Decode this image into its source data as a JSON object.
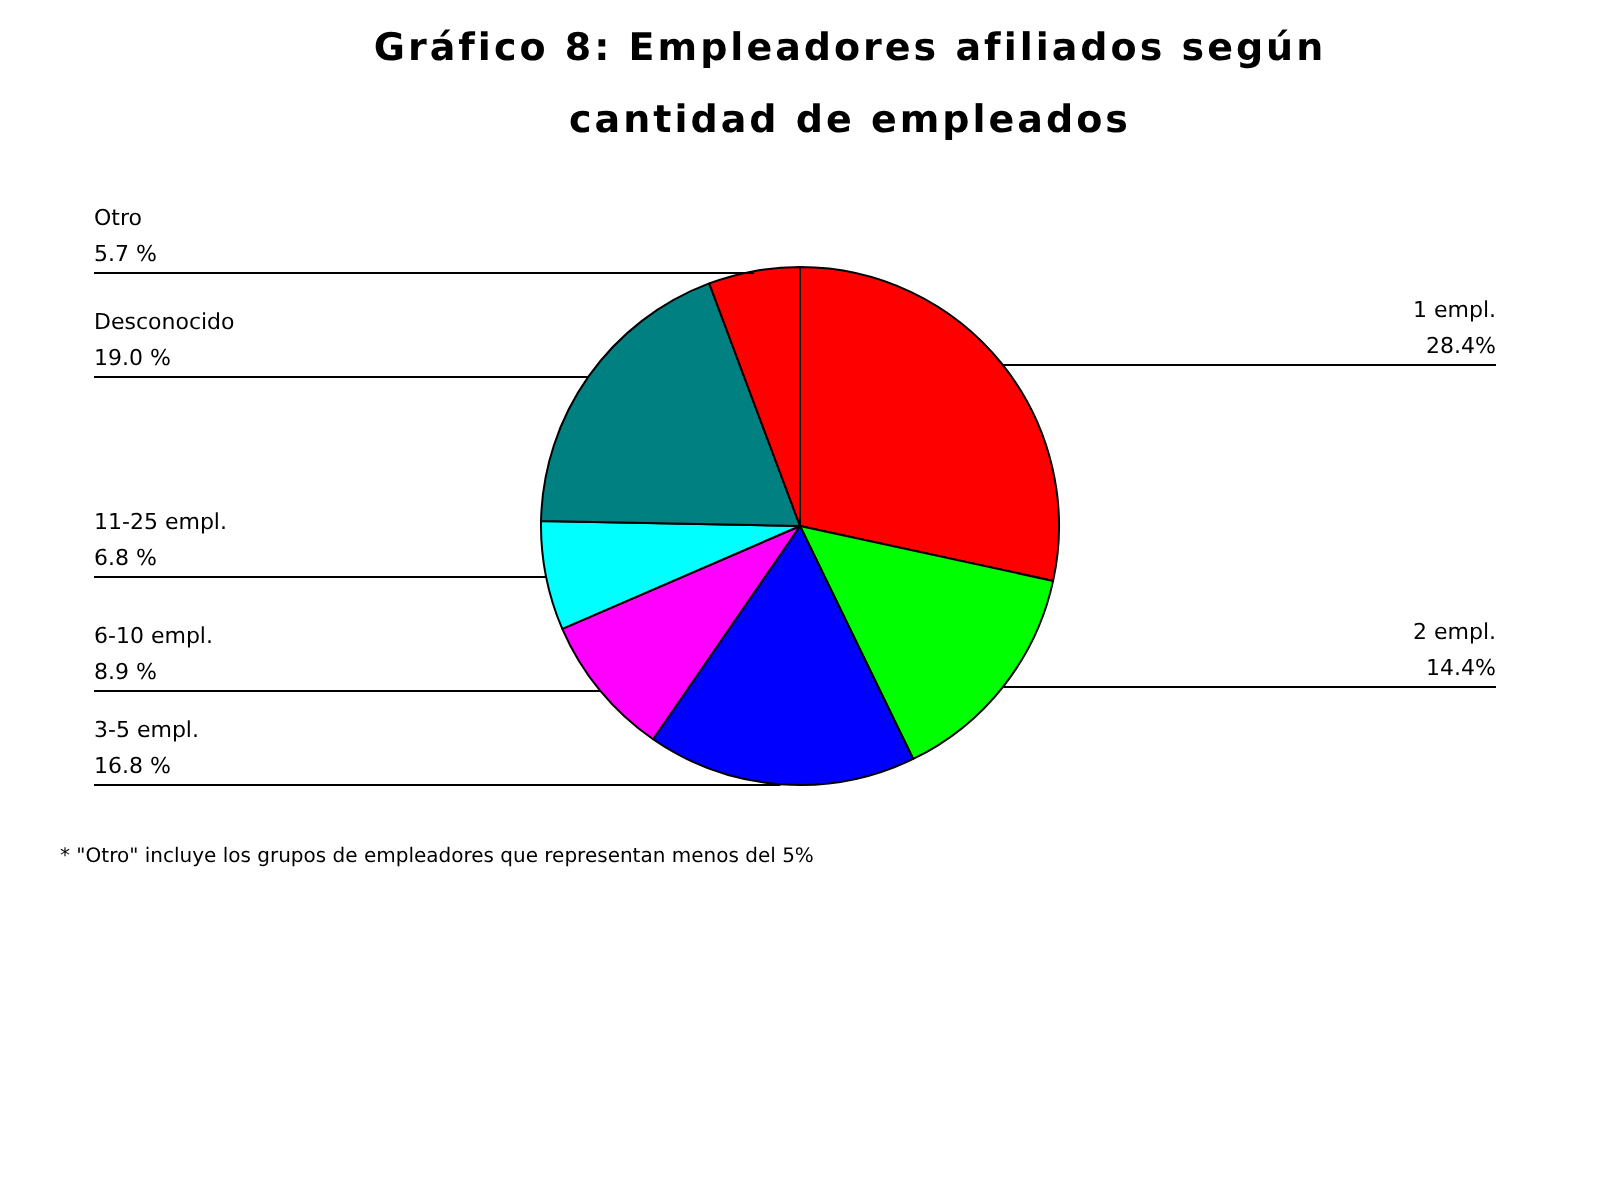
{
  "chart_data": {
    "type": "pie",
    "title": "Gráfico 8: Empleadores afiliados según cantidad de empleados",
    "categories": [
      "1 empl.",
      "2 empl.",
      "3-5 empl.",
      "6-10 empl.",
      "11-25 empl.",
      "Desconocido",
      "Otro"
    ],
    "values": [
      28.4,
      14.4,
      16.8,
      8.9,
      6.8,
      19.0,
      5.7
    ],
    "colors": [
      "#ff0000",
      "#00ff00",
      "#0000ff",
      "#ff00ff",
      "#00ffff",
      "#008080",
      "#ff0000"
    ],
    "value_labels": [
      "28.4%",
      "14.4%",
      "16.8 %",
      "8.9 %",
      "6.8 %",
      "19.0 %",
      "5.7 %"
    ],
    "annotations": [
      "* \"Otro\" incluye los grupos de empleadores que representan menos del 5%"
    ]
  }
}
